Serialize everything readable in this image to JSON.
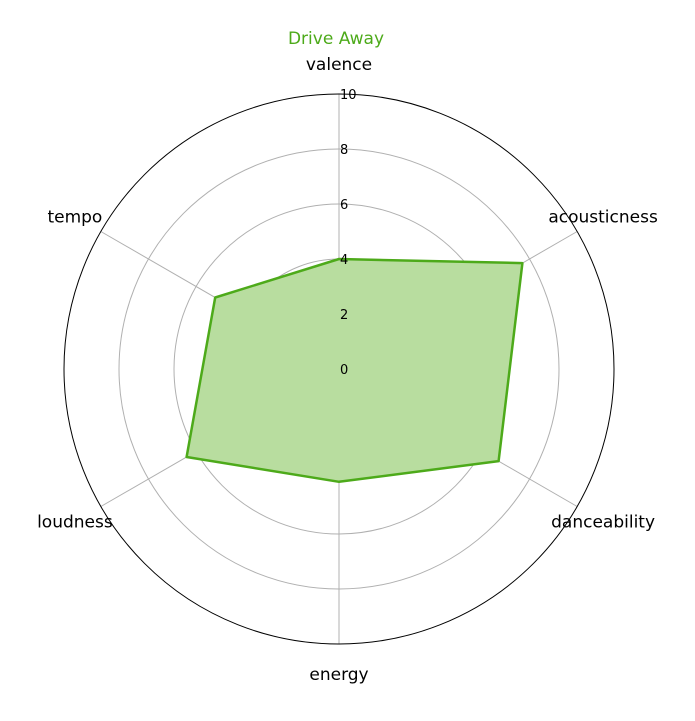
{
  "chart_data": {
    "type": "radar",
    "title": "Drive Away",
    "title_color": "#4daa1a",
    "categories": [
      "valence",
      "acousticness",
      "danceability",
      "energy",
      "loudness",
      "tempo"
    ],
    "series": [
      {
        "name": "",
        "values": [
          4.0,
          7.7,
          6.7,
          4.1,
          6.4,
          5.2
        ],
        "line_color": "#4daa1a",
        "fill_color": "#b8dd9f"
      }
    ],
    "rlim": [
      0,
      10
    ],
    "r_ticks": [
      "0",
      "2",
      "4",
      "6",
      "8",
      "10"
    ],
    "r_tick_values": [
      0,
      2,
      4,
      6,
      8,
      10
    ],
    "grid": true,
    "grid_color": "#b0b0b0"
  }
}
